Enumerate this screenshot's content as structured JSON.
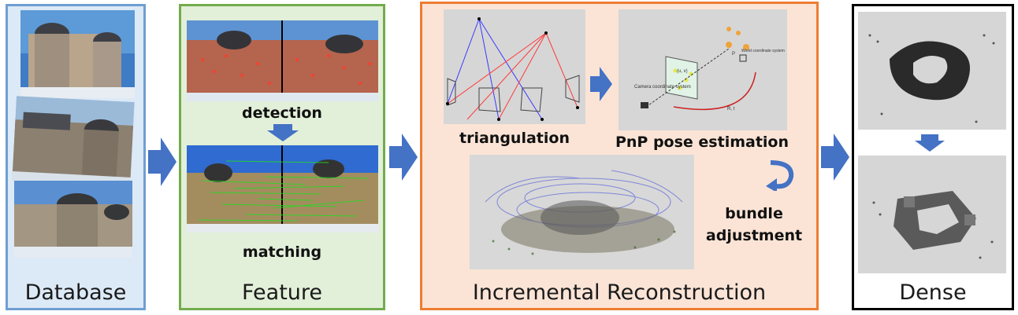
{
  "panels": {
    "database": {
      "caption": "Database"
    },
    "feature": {
      "caption": "Feature",
      "detection_label": "detection",
      "matching_label": "matching"
    },
    "incremental": {
      "caption": "Incremental Reconstruction",
      "triangulation_label": "triangulation",
      "pnp_label": "PnP pose estimation",
      "bundle_label_line1": "bundle",
      "bundle_label_line2": "adjustment",
      "pnp_diagram_text": {
        "camera_label": "Camera coordinate system",
        "world_label": "World coordinate system",
        "image_point": "(u, v)",
        "pose": "R, t",
        "point": "P"
      }
    },
    "dense": {
      "caption": "Dense"
    }
  },
  "colors": {
    "database_border": "#6f9fd2",
    "feature_border": "#72ac4d",
    "incremental_border": "#ed7d31",
    "dense_border": "#000000",
    "arrow_blue": "#4472c4"
  }
}
